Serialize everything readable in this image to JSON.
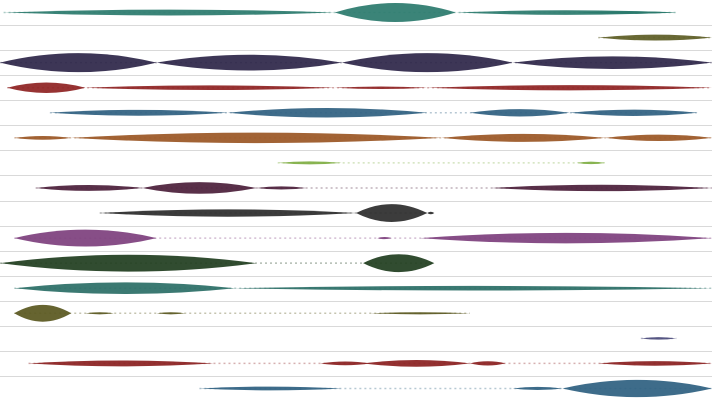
{
  "chart_data": {
    "type": "violin-strip",
    "grid": true,
    "grid_color": "#d9d9d9",
    "x_range": [
      0,
      1
    ],
    "rows": [
      {
        "color": "#2a7a6c",
        "segments": [
          [
            0.005,
            0.47,
            0.28
          ],
          [
            0.47,
            0.64,
            0.9
          ],
          [
            0.64,
            0.95,
            0.22
          ],
          [
            0.81,
            0.95,
            0.12
          ]
        ]
      },
      {
        "color": "#5c5c24",
        "segments": [
          [
            0.84,
            1.0,
            0.28
          ]
        ]
      },
      {
        "color": "#2c2548",
        "segments": [
          [
            0.0,
            0.22,
            0.9
          ],
          [
            0.22,
            0.48,
            0.75
          ],
          [
            0.48,
            0.72,
            0.9
          ],
          [
            0.72,
            1.0,
            0.6
          ]
        ]
      },
      {
        "color": "#8e2222",
        "segments": [
          [
            0.01,
            0.12,
            0.5
          ],
          [
            0.12,
            0.47,
            0.22
          ],
          [
            0.47,
            0.6,
            0.12
          ],
          [
            0.6,
            1.0,
            0.25
          ]
        ]
      },
      {
        "color": "#2f5f80",
        "segments": [
          [
            0.07,
            0.32,
            0.28
          ],
          [
            0.32,
            0.6,
            0.45
          ],
          [
            0.66,
            0.8,
            0.35
          ],
          [
            0.8,
            0.98,
            0.3
          ]
        ]
      },
      {
        "color": "#9a5624",
        "segments": [
          [
            0.02,
            0.1,
            0.18
          ],
          [
            0.1,
            0.62,
            0.5
          ],
          [
            0.62,
            0.85,
            0.38
          ],
          [
            0.85,
            1.0,
            0.3
          ]
        ]
      },
      {
        "color": "#7fae43",
        "segments": [
          [
            0.39,
            0.48,
            0.14
          ],
          [
            0.81,
            0.85,
            0.12
          ]
        ]
      },
      {
        "color": "#4b1e3a",
        "segments": [
          [
            0.05,
            0.2,
            0.28
          ],
          [
            0.2,
            0.36,
            0.55
          ],
          [
            0.36,
            0.43,
            0.15
          ],
          [
            0.69,
            1.0,
            0.3
          ]
        ]
      },
      {
        "color": "#2b2b2b",
        "segments": [
          [
            0.14,
            0.5,
            0.35
          ],
          [
            0.5,
            0.6,
            0.85
          ],
          [
            0.6,
            0.61,
            0.12
          ]
        ]
      },
      {
        "color": "#7d3f7d",
        "segments": [
          [
            0.02,
            0.22,
            0.8
          ],
          [
            0.53,
            0.55,
            0.1
          ],
          [
            0.59,
            1.0,
            0.5
          ]
        ]
      },
      {
        "color": "#203d1e",
        "segments": [
          [
            0.0,
            0.36,
            0.8
          ],
          [
            0.51,
            0.61,
            0.85
          ]
        ]
      },
      {
        "color": "#2a6e66",
        "segments": [
          [
            0.02,
            0.33,
            0.55
          ],
          [
            0.33,
            1.0,
            0.22
          ]
        ]
      },
      {
        "color": "#59571e",
        "segments": [
          [
            0.02,
            0.1,
            0.8
          ],
          [
            0.12,
            0.16,
            0.1
          ],
          [
            0.22,
            0.26,
            0.1
          ],
          [
            0.52,
            0.66,
            0.1
          ]
        ]
      },
      {
        "color": "#4a4a7a",
        "segments": [
          [
            0.9,
            0.95,
            0.12
          ]
        ]
      },
      {
        "color": "#8a2020",
        "segments": [
          [
            0.04,
            0.3,
            0.28
          ],
          [
            0.45,
            0.52,
            0.18
          ],
          [
            0.51,
            0.66,
            0.32
          ],
          [
            0.66,
            0.71,
            0.2
          ],
          [
            0.84,
            1.0,
            0.22
          ]
        ]
      },
      {
        "color": "#2e6080",
        "segments": [
          [
            0.28,
            0.48,
            0.18
          ],
          [
            0.72,
            0.79,
            0.15
          ],
          [
            0.79,
            1.0,
            0.82
          ]
        ]
      }
    ]
  }
}
